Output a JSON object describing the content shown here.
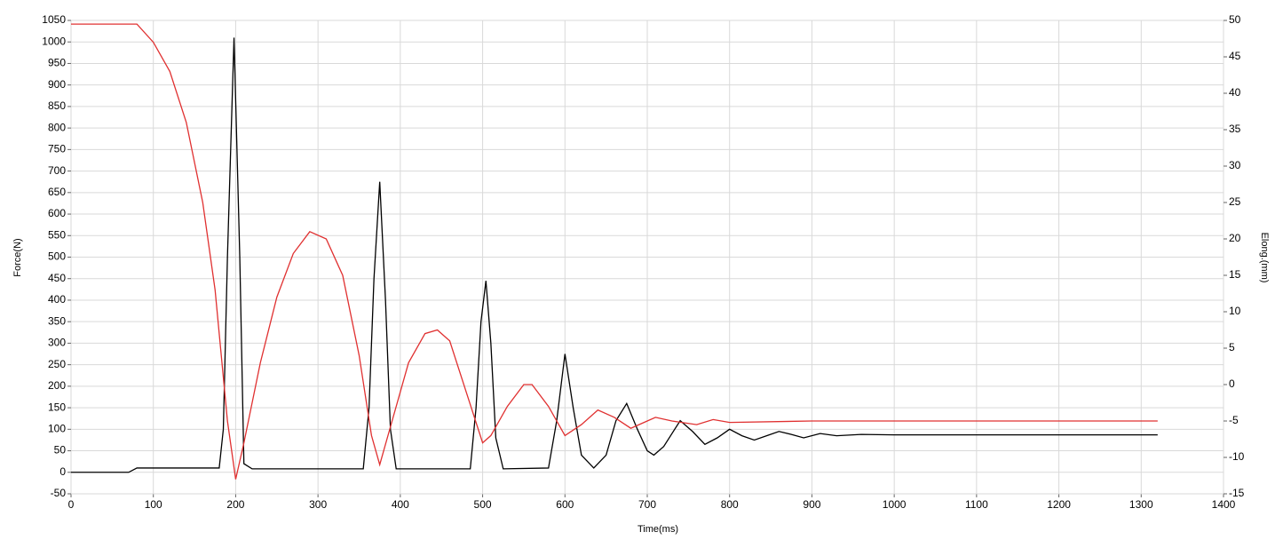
{
  "chart_data": {
    "type": "line",
    "x_label": "Time(ms)",
    "y_label": "Force(N)",
    "y2_label": "Elong.(mm)",
    "xlim": [
      0,
      1400
    ],
    "xticks": [
      0,
      100,
      200,
      300,
      400,
      500,
      600,
      700,
      800,
      900,
      1000,
      1100,
      1200,
      1300,
      1400
    ],
    "ylim": [
      -50,
      1050
    ],
    "yticks": [
      -50,
      0,
      50,
      100,
      150,
      200,
      250,
      300,
      350,
      400,
      450,
      500,
      550,
      600,
      650,
      700,
      750,
      800,
      850,
      900,
      950,
      1000,
      1050
    ],
    "y2lim": [
      -15,
      50
    ],
    "y2ticks": [
      -15,
      -10,
      -5,
      0,
      5,
      10,
      15,
      20,
      25,
      30,
      35,
      40,
      45,
      50
    ],
    "grid": true,
    "series": [
      {
        "color": "#000000",
        "x": [
          0,
          70,
          80,
          180,
          185,
          190,
          198,
          205,
          210,
          220,
          355,
          362,
          368,
          375,
          382,
          388,
          395,
          485,
          492,
          498,
          504,
          510,
          516,
          525,
          580,
          590,
          600,
          610,
          620,
          635,
          650,
          662,
          675,
          688,
          700,
          708,
          720,
          740,
          755,
          770,
          785,
          800,
          815,
          830,
          845,
          860,
          875,
          890,
          910,
          930,
          960,
          1000,
          1100,
          1200,
          1320
        ],
        "values": [
          0,
          0,
          10,
          10,
          100,
          500,
          1010,
          500,
          20,
          8,
          8,
          150,
          450,
          675,
          400,
          100,
          8,
          8,
          150,
          350,
          445,
          300,
          80,
          8,
          10,
          120,
          275,
          150,
          40,
          10,
          40,
          120,
          160,
          100,
          50,
          40,
          60,
          120,
          95,
          65,
          80,
          100,
          85,
          75,
          85,
          95,
          88,
          80,
          90,
          85,
          88,
          87,
          87,
          87,
          87
        ]
      },
      {
        "color": "#e03030",
        "axis": "y2",
        "x": [
          0,
          80,
          100,
          120,
          140,
          160,
          175,
          190,
          200,
          210,
          230,
          250,
          270,
          290,
          310,
          330,
          350,
          365,
          375,
          390,
          410,
          430,
          445,
          460,
          480,
          500,
          510,
          530,
          550,
          560,
          580,
          600,
          620,
          640,
          660,
          680,
          700,
          710,
          730,
          760,
          780,
          800,
          900,
          1320
        ],
        "values": [
          49.5,
          49.5,
          47,
          43,
          36,
          25,
          13,
          -5,
          -13,
          -8,
          3,
          12,
          18,
          21,
          20,
          15,
          4,
          -7,
          -11,
          -5,
          3,
          7,
          7.5,
          6,
          -1,
          -8,
          -7,
          -3,
          0,
          0,
          -3,
          -7,
          -5.5,
          -3.5,
          -4.5,
          -6,
          -5,
          -4.5,
          -5,
          -5.5,
          -4.8,
          -5.2,
          -5,
          -5
        ]
      }
    ]
  }
}
